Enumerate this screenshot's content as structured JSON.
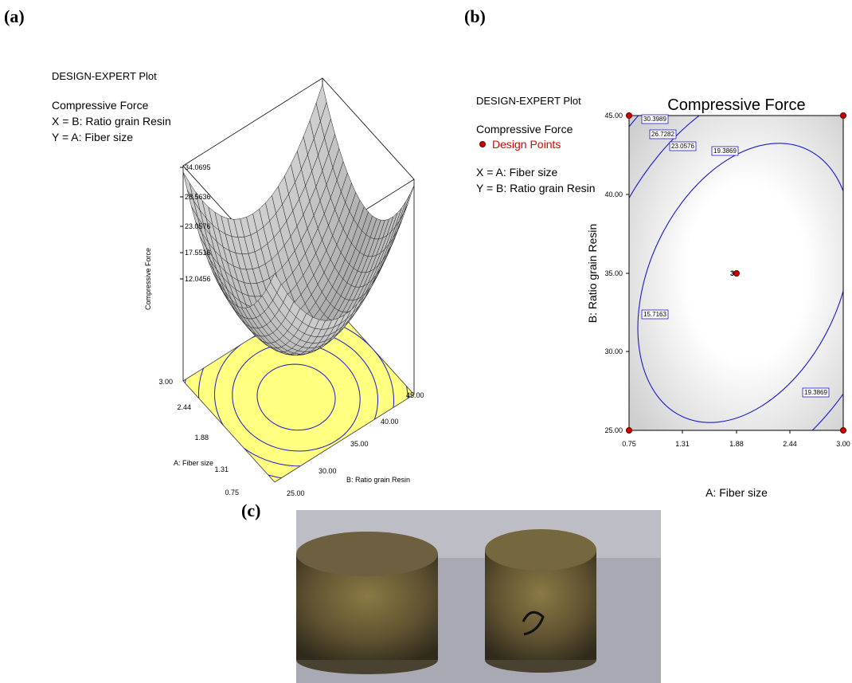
{
  "panel_a": {
    "label": "(a)",
    "header": "DESIGN-EXPERT Plot",
    "response": "Compressive Force",
    "x_def": "X = B: Ratio grain Resin",
    "y_def": "Y = A: Fiber size",
    "z_axis_title": "Compressive Force",
    "z_ticks": [
      "34.0695",
      "28.5636",
      "23.0576",
      "17.5516",
      "12.0456"
    ],
    "a_axis_title": "A: Fiber size",
    "a_ticks": [
      "3.00",
      "2.44",
      "1.88",
      "1.31",
      "0.75"
    ],
    "b_axis_title": "B: Ratio grain Resin",
    "b_ticks": [
      "25.00",
      "30.00",
      "35.00",
      "40.00",
      "45.00"
    ]
  },
  "panel_b": {
    "label": "(b)",
    "header": "DESIGN-EXPERT Plot",
    "response": "Compressive Force",
    "legend": "Design Points",
    "x_def": "X = A: Fiber size",
    "y_def": "Y = B: Ratio grain Resin",
    "title": "Compressive Force",
    "x_axis_title": "A: Fiber size",
    "y_axis_title": "B: Ratio grain Resin",
    "x_ticks": [
      "0.75",
      "1.31",
      "1.88",
      "2.44",
      "3.00"
    ],
    "y_ticks": [
      "45.00",
      "40.00",
      "35.00",
      "30.00",
      "25.00"
    ],
    "contour_labels": [
      "30.3989",
      "26.7282",
      "23.0576",
      "19.3869",
      "15.7163",
      "19.3869"
    ],
    "center_point_label": "3"
  },
  "panel_c": {
    "label": "(c)"
  }
}
